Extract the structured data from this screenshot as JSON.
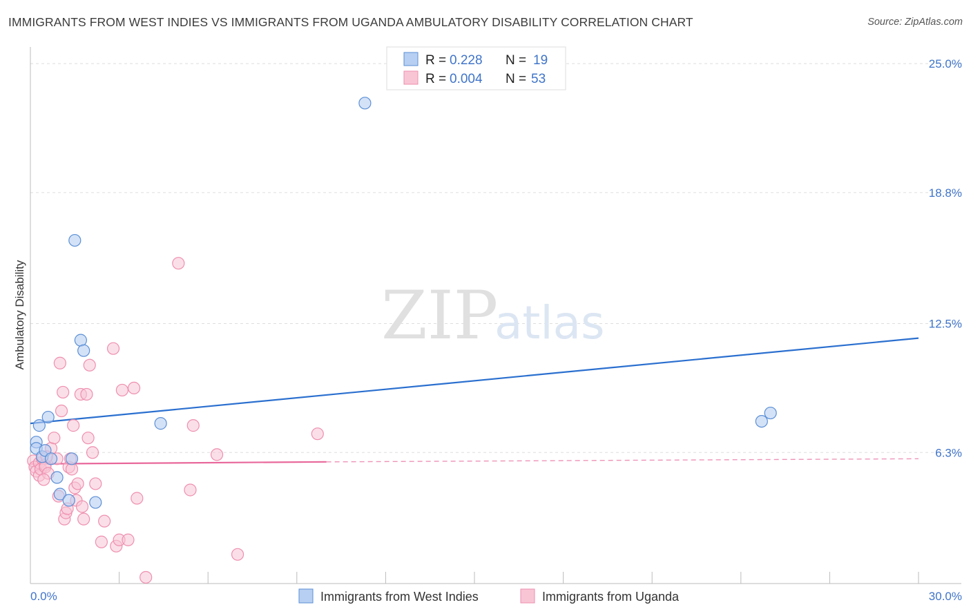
{
  "header": {
    "title": "IMMIGRANTS FROM WEST INDIES VS IMMIGRANTS FROM UGANDA AMBULATORY DISABILITY CORRELATION CHART",
    "source": "Source: ZipAtlas.com"
  },
  "watermark": {
    "zip": "ZIP",
    "atlas": "atlas"
  },
  "colors": {
    "blue": "#5b8fd6",
    "blue_fill": "#b7cff2",
    "blue_line": "#2a6fcf",
    "pink": "#ee8fae",
    "pink_fill": "#f8c5d5",
    "pink_line": "#e8679a",
    "grid": "#dddddd",
    "tick_label": "#3f74c9"
  },
  "legend": {
    "rows": [
      {
        "r_label": "R =",
        "r_value": "0.228",
        "n_label": "N =",
        "n_value": "19"
      },
      {
        "r_label": "R =",
        "r_value": "0.004",
        "n_label": "N =",
        "n_value": "53"
      }
    ]
  },
  "chart_data": {
    "type": "scatter",
    "title": "IMMIGRANTS FROM WEST INDIES VS IMMIGRANTS FROM UGANDA AMBULATORY DISABILITY CORRELATION CHART",
    "xlabel": "",
    "ylabel": "Ambulatory Disability",
    "xlim": [
      0,
      30
    ],
    "ylim": [
      0,
      25.8
    ],
    "x_tick_labels": [
      "0.0%",
      "30.0%"
    ],
    "y_ticks": [
      6.3,
      12.5,
      18.8,
      25.0
    ],
    "y_tick_labels": [
      "6.3%",
      "12.5%",
      "18.8%",
      "25.0%"
    ],
    "grid": true,
    "legend_position": "top-center",
    "series": [
      {
        "name": "Immigrants from West Indies",
        "color": "#5b8fd6",
        "R": 0.228,
        "N": 19,
        "points": [
          [
            0.2,
            6.8
          ],
          [
            0.2,
            6.5
          ],
          [
            0.3,
            7.6
          ],
          [
            0.4,
            6.1
          ],
          [
            0.5,
            6.4
          ],
          [
            0.6,
            8.0
          ],
          [
            0.7,
            6.0
          ],
          [
            0.9,
            5.1
          ],
          [
            1.0,
            4.3
          ],
          [
            1.3,
            4.0
          ],
          [
            1.4,
            6.0
          ],
          [
            1.5,
            16.5
          ],
          [
            1.7,
            11.7
          ],
          [
            1.8,
            11.2
          ],
          [
            2.2,
            3.9
          ],
          [
            4.4,
            7.7
          ],
          [
            11.3,
            23.1
          ],
          [
            24.7,
            7.8
          ],
          [
            25.0,
            8.2
          ]
        ],
        "trend": {
          "x": [
            0,
            30
          ],
          "y": [
            7.7,
            11.8
          ],
          "style": "solid"
        }
      },
      {
        "name": "Immigrants from Uganda",
        "color": "#ee8fae",
        "R": 0.004,
        "N": 53,
        "points": [
          [
            0.1,
            5.9
          ],
          [
            0.15,
            5.6
          ],
          [
            0.2,
            5.4
          ],
          [
            0.3,
            5.2
          ],
          [
            0.3,
            5.8
          ],
          [
            0.35,
            5.5
          ],
          [
            0.4,
            6.0
          ],
          [
            0.5,
            5.7
          ],
          [
            0.5,
            5.6
          ],
          [
            0.6,
            5.3
          ],
          [
            0.7,
            6.5
          ],
          [
            0.8,
            7.0
          ],
          [
            0.9,
            6.0
          ],
          [
            0.95,
            4.2
          ],
          [
            1.0,
            10.6
          ],
          [
            1.05,
            8.3
          ],
          [
            1.1,
            9.2
          ],
          [
            1.15,
            3.1
          ],
          [
            1.2,
            3.4
          ],
          [
            1.3,
            5.6
          ],
          [
            1.35,
            6.0
          ],
          [
            1.4,
            5.5
          ],
          [
            1.45,
            7.6
          ],
          [
            1.5,
            4.6
          ],
          [
            1.55,
            4.0
          ],
          [
            1.6,
            4.8
          ],
          [
            1.7,
            9.1
          ],
          [
            1.75,
            3.7
          ],
          [
            1.8,
            3.1
          ],
          [
            1.9,
            9.1
          ],
          [
            1.95,
            7.0
          ],
          [
            2.0,
            10.5
          ],
          [
            2.1,
            6.3
          ],
          [
            2.2,
            4.8
          ],
          [
            2.4,
            2.0
          ],
          [
            2.5,
            3.0
          ],
          [
            2.8,
            11.3
          ],
          [
            2.9,
            1.8
          ],
          [
            3.0,
            2.1
          ],
          [
            3.1,
            9.3
          ],
          [
            3.3,
            2.1
          ],
          [
            3.5,
            9.4
          ],
          [
            3.6,
            4.1
          ],
          [
            3.9,
            0.3
          ],
          [
            5.0,
            15.4
          ],
          [
            5.4,
            4.5
          ],
          [
            5.5,
            7.6
          ],
          [
            6.3,
            6.2
          ],
          [
            7.0,
            1.4
          ],
          [
            9.7,
            7.2
          ],
          [
            1.25,
            3.6
          ],
          [
            0.45,
            5.0
          ],
          [
            0.55,
            6.1
          ]
        ],
        "trend": {
          "x": [
            0,
            10
          ],
          "y": [
            5.75,
            5.85
          ],
          "style": "solid",
          "extension": {
            "x": [
              10,
              30
            ],
            "y": [
              5.85,
              6.0
            ],
            "style": "dashed"
          }
        }
      }
    ]
  }
}
